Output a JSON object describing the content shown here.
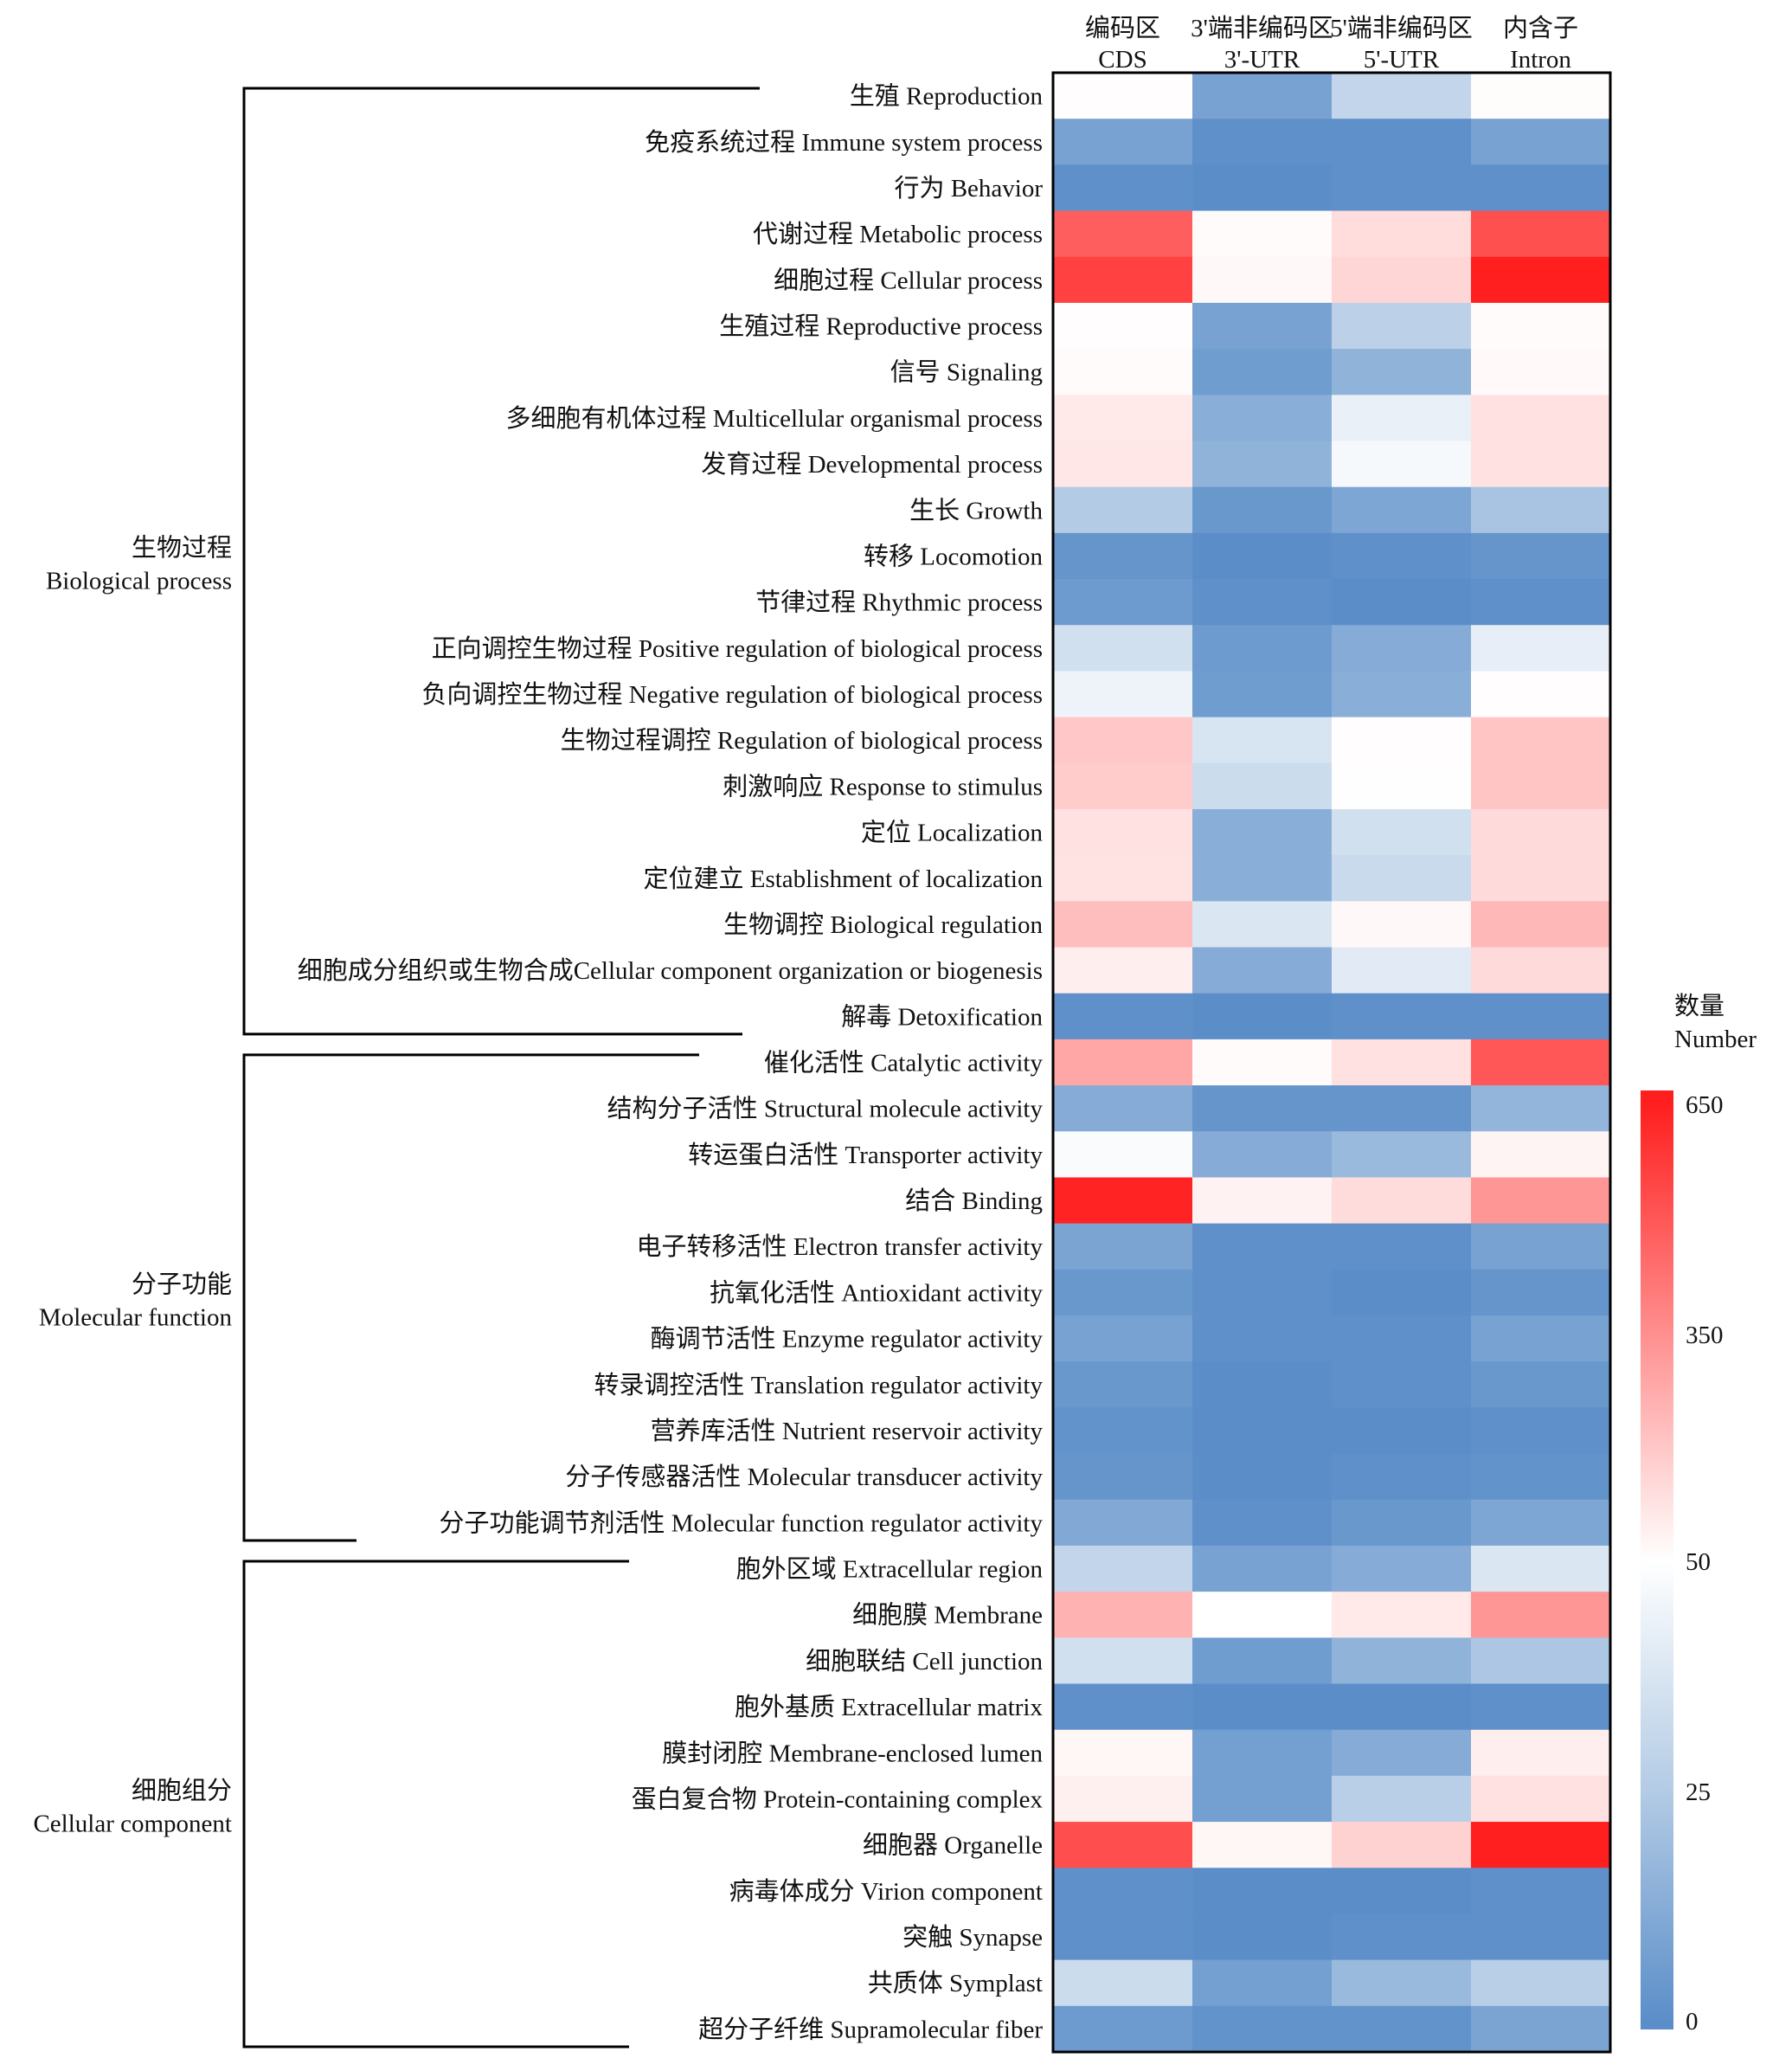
{
  "chart_data": {
    "type": "heatmap",
    "title": "",
    "columns": [
      {
        "zh": "编码区",
        "en": "CDS"
      },
      {
        "zh": "3'端非编码区",
        "en": "3'-UTR"
      },
      {
        "zh": "5'端非编码区",
        "en": "5'-UTR"
      },
      {
        "zh": "内含子",
        "en": "Intron"
      }
    ],
    "rows": [
      {
        "label": "生殖 Reproduction",
        "values": [
          55,
          8,
          30,
          58
        ]
      },
      {
        "label": "免疫系统过程 Immune system process",
        "values": [
          8,
          1,
          1,
          8
        ]
      },
      {
        "label": "行为 Behavior",
        "values": [
          1,
          0,
          1,
          1
        ]
      },
      {
        "label": "代谢过程 Metabolic process",
        "values": [
          480,
          60,
          140,
          520
        ]
      },
      {
        "label": "细胞过程 Cellular process",
        "values": [
          560,
          70,
          160,
          660
        ]
      },
      {
        "label": "生殖过程 Reproductive process",
        "values": [
          56,
          8,
          28,
          62
        ]
      },
      {
        "label": "信号 Signaling",
        "values": [
          62,
          6,
          15,
          65
        ]
      },
      {
        "label": "多细胞有机体过程 Multicellular organismal process",
        "values": [
          110,
          13,
          43,
          130
        ]
      },
      {
        "label": "发育过程 Developmental process",
        "values": [
          115,
          15,
          47,
          130
        ]
      },
      {
        "label": "生长 Growth",
        "values": [
          25,
          4,
          10,
          22
        ]
      },
      {
        "label": "转移 Locomotion",
        "values": [
          3,
          0,
          1,
          3
        ]
      },
      {
        "label": "节律过程 Rhythmic process",
        "values": [
          5,
          1,
          0,
          1
        ]
      },
      {
        "label": "正向调控生物过程 Positive regulation of biological process",
        "values": [
          35,
          5,
          12,
          42
        ]
      },
      {
        "label": "负向调控生物过程 Negative regulation of biological process",
        "values": [
          44,
          6,
          13,
          55
        ]
      },
      {
        "label": "生物过程调控 Regulation of biological process",
        "values": [
          200,
          37,
          55,
          205
        ]
      },
      {
        "label": "刺激响应 Response to stimulus",
        "values": [
          190,
          33,
          52,
          205
        ]
      },
      {
        "label": "定位 Localization",
        "values": [
          130,
          13,
          35,
          150
        ]
      },
      {
        "label": "定位建立 Establishment of localization",
        "values": [
          125,
          13,
          32,
          150
        ]
      },
      {
        "label": "生物调控 Biological regulation",
        "values": [
          225,
          38,
          70,
          240
        ]
      },
      {
        "label": "细胞成分组织或生物合成Cellular component organization or biogenesis",
        "values": [
          95,
          12,
          40,
          150
        ]
      },
      {
        "label": "解毒 Detoxification",
        "values": [
          1,
          0,
          1,
          1
        ]
      },
      {
        "label": "催化活性 Catalytic activity",
        "values": [
          285,
          60,
          130,
          500
        ]
      },
      {
        "label": "结构分子活性 Structural molecule activity",
        "values": [
          12,
          3,
          3,
          16
        ]
      },
      {
        "label": "转运蛋白活性 Transporter activity",
        "values": [
          48,
          12,
          18,
          80
        ]
      },
      {
        "label": "结合 Binding",
        "values": [
          640,
          85,
          145,
          330
        ]
      },
      {
        "label": "电子转移活性 Electron transfer activity",
        "values": [
          9,
          1,
          1,
          8
        ]
      },
      {
        "label": "抗氧化活性 Antioxidant activity",
        "values": [
          4,
          1,
          0,
          3
        ]
      },
      {
        "label": "酶调节活性 Enzyme regulator activity",
        "values": [
          8,
          1,
          1,
          8
        ]
      },
      {
        "label": "转录调控活性 Translation regulator activity",
        "values": [
          4,
          0,
          1,
          4
        ]
      },
      {
        "label": "营养库活性 Nutrient reservoir activity",
        "values": [
          2,
          0,
          0,
          1
        ]
      },
      {
        "label": "分子传感器活性 Molecular transducer activity",
        "values": [
          3,
          0,
          1,
          2
        ]
      },
      {
        "label": "分子功能调节剂活性 Molecular function regulator activity",
        "values": [
          11,
          1,
          4,
          10
        ]
      },
      {
        "label": "胞外区域 Extracellular region",
        "values": [
          30,
          8,
          12,
          38
        ]
      },
      {
        "label": "细胞膜 Membrane",
        "values": [
          255,
          50,
          110,
          330
        ]
      },
      {
        "label": "细胞联结 Cell junction",
        "values": [
          35,
          6,
          15,
          23
        ]
      },
      {
        "label": "胞外基质 Extracellular matrix",
        "values": [
          1,
          0,
          0,
          1
        ]
      },
      {
        "label": "膜封闭腔 Membrane-enclosed lumen",
        "values": [
          75,
          7,
          12,
          95
        ]
      },
      {
        "label": "蛋白复合物 Protein-containing complex",
        "values": [
          90,
          7,
          27,
          130
        ]
      },
      {
        "label": "细胞器 Organelle",
        "values": [
          525,
          75,
          170,
          680
        ]
      },
      {
        "label": "病毒体成分 Virion component",
        "values": [
          1,
          0,
          0,
          1
        ]
      },
      {
        "label": "突触 Synapse",
        "values": [
          1,
          0,
          1,
          1
        ]
      },
      {
        "label": "共质体 Symplast",
        "values": [
          33,
          7,
          18,
          27
        ]
      },
      {
        "label": "超分子纤维 Supramolecular fiber",
        "values": [
          5,
          2,
          2,
          9
        ]
      }
    ],
    "groups": [
      {
        "zh": "生物过程",
        "en": "Biological process",
        "first_row": 0,
        "last_row": 20
      },
      {
        "zh": "分子功能",
        "en": "Molecular function",
        "first_row": 21,
        "last_row": 31
      },
      {
        "zh": "细胞组分",
        "en": "Cellular component",
        "first_row": 32,
        "last_row": 42
      }
    ],
    "colorbar": {
      "title_zh": "数量",
      "title_en": "Number",
      "ticks": [
        "650",
        "350",
        "50",
        "25",
        "0"
      ],
      "tick_values": [
        650,
        350,
        50,
        25,
        0
      ],
      "stops": [
        {
          "value": 0,
          "color": "#5b8ec9"
        },
        {
          "value": 25,
          "color": "#b3cbe5"
        },
        {
          "value": 50,
          "color": "#ffffff"
        },
        {
          "value": 350,
          "color": "#ff8f8f"
        },
        {
          "value": 650,
          "color": "#ff1f1f"
        }
      ]
    }
  }
}
